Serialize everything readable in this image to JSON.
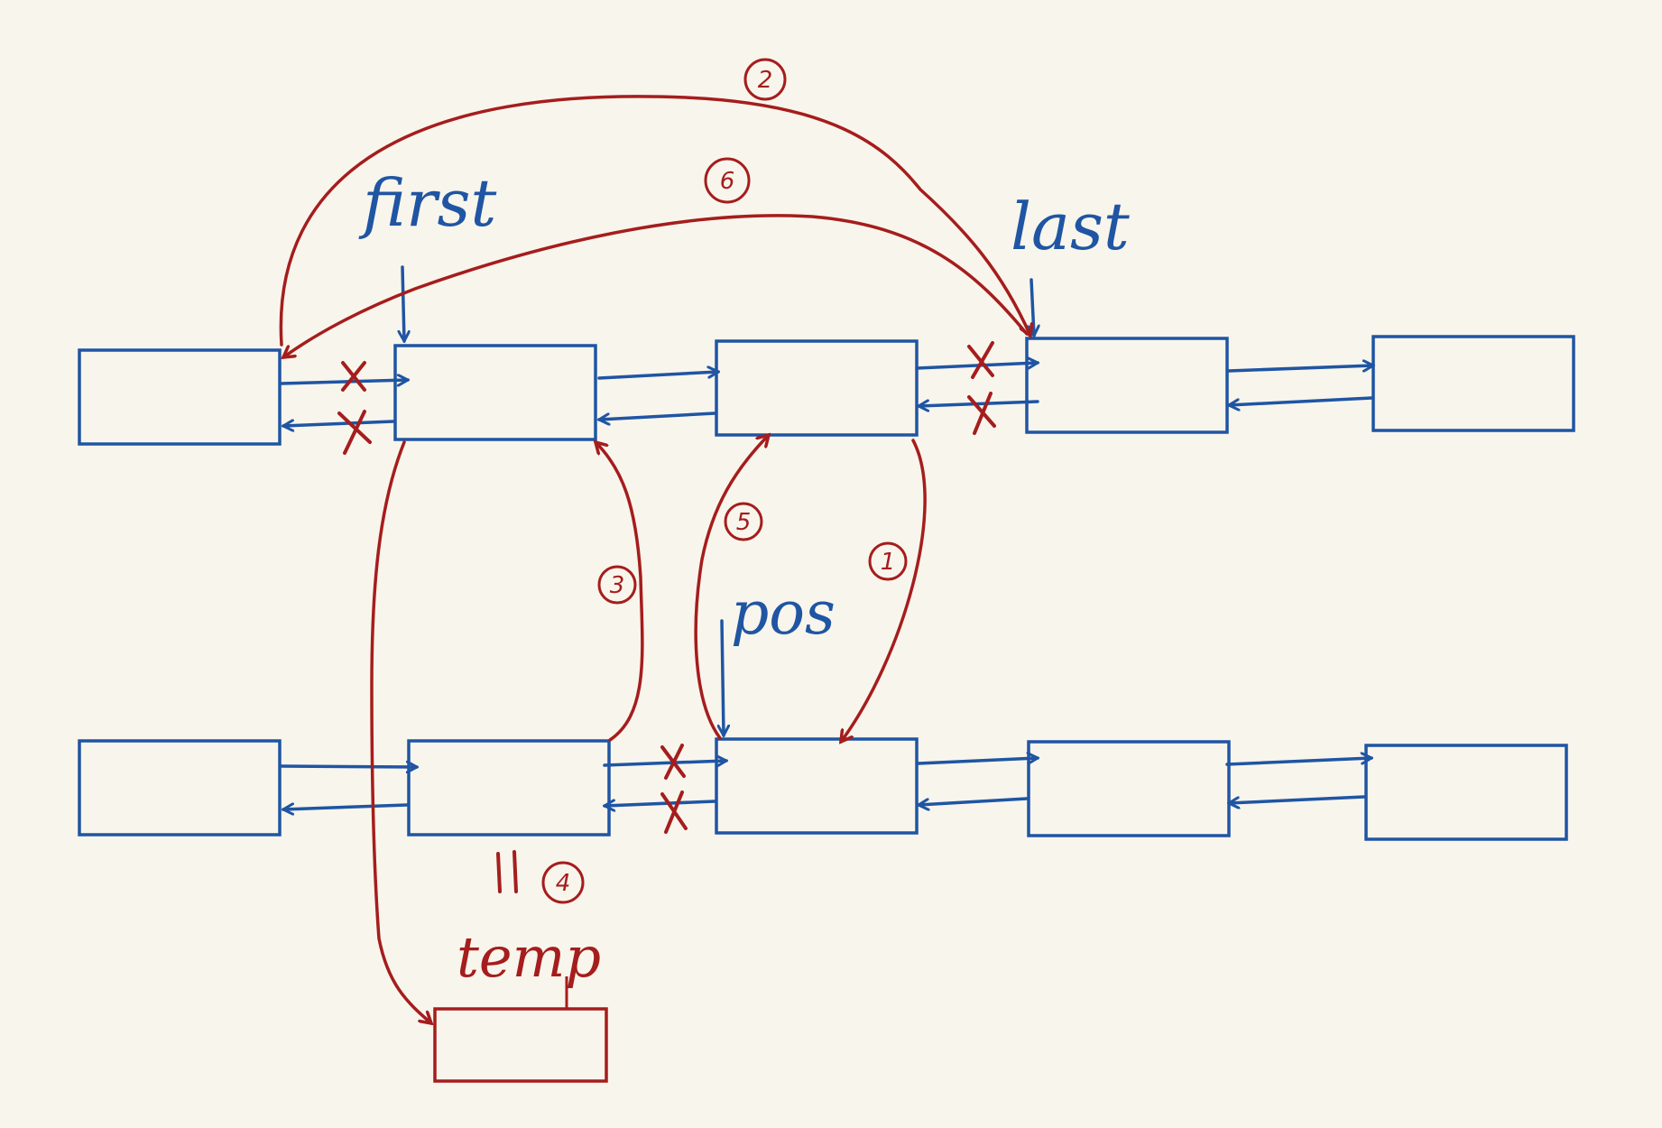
{
  "colors": {
    "background": "#f8f5ec",
    "blue": "#1f55a3",
    "red": "#a51d1d"
  },
  "labels": {
    "first": "first",
    "last": "last",
    "pos": "pos",
    "temp": "temp",
    "assign": "=",
    "cross": "X"
  },
  "steps": {
    "s1": "1",
    "s2": "2",
    "s3": "3",
    "s4": "4",
    "s5": "5",
    "s6": "6"
  }
}
